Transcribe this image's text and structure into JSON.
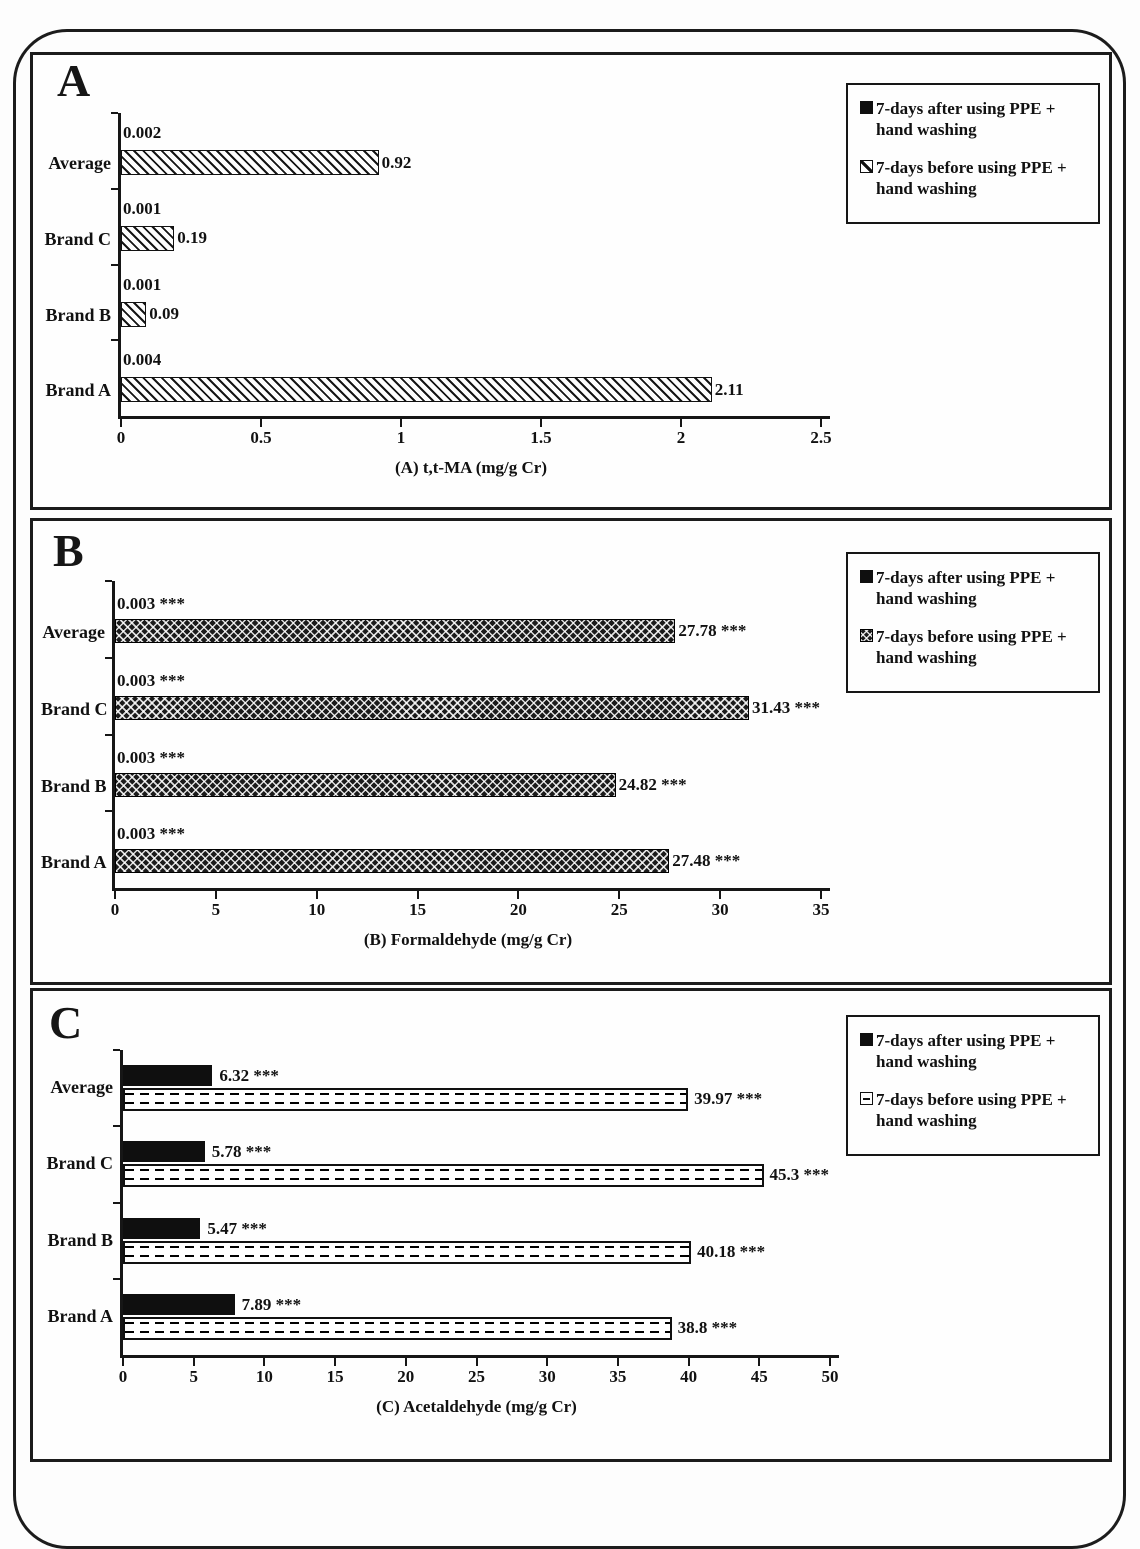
{
  "figure": {
    "panels": [
      {
        "letter": "A"
      },
      {
        "letter": "B"
      },
      {
        "letter": "C"
      }
    ]
  },
  "chart_data": [
    {
      "type": "bar",
      "orientation": "horizontal",
      "panel": "A",
      "xlabel": "(A) t,t-MA (mg/g Cr)",
      "xlim": [
        0,
        2.5
      ],
      "xticks": [
        "0",
        "0.5",
        "1",
        "1.5",
        "2",
        "2.5"
      ],
      "categories": [
        "Average",
        "Brand C",
        "Brand B",
        "Brand A"
      ],
      "grid": false,
      "legend_position": "top-right",
      "series": [
        {
          "name": "7-days after using PPE + hand washing",
          "pattern": "solid-black",
          "values": [
            0.002,
            0.001,
            0.001,
            0.004
          ],
          "value_labels": [
            "0.002",
            "0.001",
            "0.001",
            "0.004"
          ]
        },
        {
          "name": "7-days before using PPE + hand washing",
          "pattern": "diagonal-hatch",
          "values": [
            0.92,
            0.19,
            0.09,
            2.11
          ],
          "value_labels": [
            "0.92",
            "0.19",
            "0.09",
            "2.11"
          ]
        }
      ]
    },
    {
      "type": "bar",
      "orientation": "horizontal",
      "panel": "B",
      "xlabel": "(B) Formaldehyde (mg/g Cr)",
      "xlim": [
        0,
        35
      ],
      "xticks": [
        "0",
        "5",
        "10",
        "15",
        "20",
        "25",
        "30",
        "35"
      ],
      "categories": [
        "Average",
        "Brand C",
        "Brand B",
        "Brand A"
      ],
      "grid": false,
      "legend_position": "top-right",
      "series": [
        {
          "name": "7-days after using PPE + hand washing",
          "pattern": "solid-black",
          "values": [
            0.003,
            0.003,
            0.003,
            0.003
          ],
          "value_labels": [
            "0.003 ***",
            "0.003 ***",
            "0.003 ***",
            "0.003 ***"
          ]
        },
        {
          "name": "7-days before using PPE + hand washing",
          "pattern": "cross-hatch",
          "values": [
            27.78,
            31.43,
            24.82,
            27.48
          ],
          "value_labels": [
            "27.78 ***",
            "31.43 ***",
            "24.82 ***",
            "27.48 ***"
          ]
        }
      ]
    },
    {
      "type": "bar",
      "orientation": "horizontal",
      "panel": "C",
      "xlabel": "(C) Acetaldehyde (mg/g Cr)",
      "xlim": [
        0,
        50
      ],
      "xticks": [
        "0",
        "5",
        "10",
        "15",
        "20",
        "25",
        "30",
        "35",
        "40",
        "45",
        "50"
      ],
      "categories": [
        "Average",
        "Brand C",
        "Brand B",
        "Brand A"
      ],
      "grid": false,
      "legend_position": "top-right",
      "series": [
        {
          "name": "7-days after using PPE + hand washing",
          "pattern": "solid-black",
          "values": [
            6.32,
            5.78,
            5.47,
            7.89
          ],
          "value_labels": [
            "6.32 ***",
            "5.78 ***",
            "5.47 ***",
            "7.89 ***"
          ]
        },
        {
          "name": "7-days before using PPE + hand washing",
          "pattern": "dashed-rows",
          "values": [
            39.97,
            45.3,
            40.18,
            38.8
          ],
          "value_labels": [
            "39.97 ***",
            "45.3 ***",
            "40.18 ***",
            "38.8 ***"
          ]
        }
      ]
    }
  ]
}
